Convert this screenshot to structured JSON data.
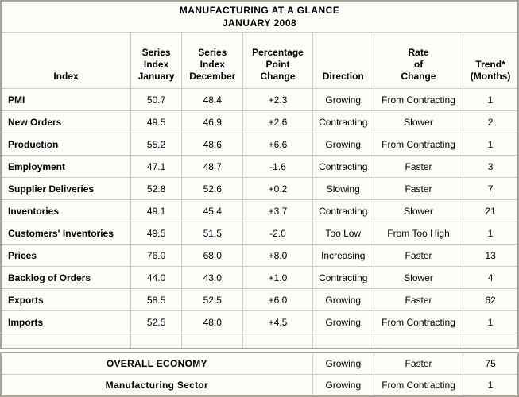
{
  "title": {
    "line1": "MANUFACTURING AT A GLANCE",
    "line2": "JANUARY 2008"
  },
  "columns": [
    {
      "key": "index",
      "label": "Index"
    },
    {
      "key": "jan",
      "label": "Series\nIndex\nJanuary"
    },
    {
      "key": "dec",
      "label": "Series\nIndex\nDecember"
    },
    {
      "key": "change",
      "label": "Percentage\nPoint\nChange"
    },
    {
      "key": "direction",
      "label": "Direction"
    },
    {
      "key": "rate",
      "label": "Rate\nof\nChange"
    },
    {
      "key": "trend",
      "label": "Trend*\n(Months)"
    }
  ],
  "rows": [
    {
      "index": "PMI",
      "jan": "50.7",
      "dec": "48.4",
      "change": "+2.3",
      "direction": "Growing",
      "rate": "From Contracting",
      "trend": "1"
    },
    {
      "index": "New Orders",
      "jan": "49.5",
      "dec": "46.9",
      "change": "+2.6",
      "direction": "Contracting",
      "rate": "Slower",
      "trend": "2"
    },
    {
      "index": "Production",
      "jan": "55.2",
      "dec": "48.6",
      "change": "+6.6",
      "direction": "Growing",
      "rate": "From Contracting",
      "trend": "1"
    },
    {
      "index": "Employment",
      "jan": "47.1",
      "dec": "48.7",
      "change": "-1.6",
      "direction": "Contracting",
      "rate": "Faster",
      "trend": "3"
    },
    {
      "index": "Supplier Deliveries",
      "jan": "52.8",
      "dec": "52.6",
      "change": "+0.2",
      "direction": "Slowing",
      "rate": "Faster",
      "trend": "7"
    },
    {
      "index": "Inventories",
      "jan": "49.1",
      "dec": "45.4",
      "change": "+3.7",
      "direction": "Contracting",
      "rate": "Slower",
      "trend": "21"
    },
    {
      "index": "Customers' Inventories",
      "jan": "49.5",
      "dec": "51.5",
      "change": "-2.0",
      "direction": "Too Low",
      "rate": "From Too High",
      "trend": "1"
    },
    {
      "index": "Prices",
      "jan": "76.0",
      "dec": "68.0",
      "change": "+8.0",
      "direction": "Increasing",
      "rate": "Faster",
      "trend": "13"
    },
    {
      "index": "Backlog of Orders",
      "jan": "44.0",
      "dec": "43.0",
      "change": "+1.0",
      "direction": "Contracting",
      "rate": "Slower",
      "trend": "4"
    },
    {
      "index": "Exports",
      "jan": "58.5",
      "dec": "52.5",
      "change": "+6.0",
      "direction": "Growing",
      "rate": "Faster",
      "trend": "62"
    },
    {
      "index": "Imports",
      "jan": "52.5",
      "dec": "48.0",
      "change": "+4.5",
      "direction": "Growing",
      "rate": "From Contracting",
      "trend": "1"
    }
  ],
  "summary_rows": [
    {
      "label": "OVERALL ECONOMY",
      "direction": "Growing",
      "rate": "Faster",
      "trend": "75"
    },
    {
      "label": "Manufacturing Sector",
      "direction": "Growing",
      "rate": "From Contracting",
      "trend": "1"
    }
  ],
  "colors": {
    "cell_bg": "#fcfef9",
    "border_inner": "#d2cebe",
    "border_outer": "#a8a496",
    "text": "#000000"
  },
  "chart_data": {
    "type": "table",
    "title": "MANUFACTURING AT A GLANCE JANUARY 2008",
    "columns": [
      "Index",
      "Series Index January",
      "Series Index December",
      "Percentage Point Change",
      "Direction",
      "Rate of Change",
      "Trend* (Months)"
    ],
    "rows": [
      [
        "PMI",
        50.7,
        48.4,
        "+2.3",
        "Growing",
        "From Contracting",
        1
      ],
      [
        "New Orders",
        49.5,
        46.9,
        "+2.6",
        "Contracting",
        "Slower",
        2
      ],
      [
        "Production",
        55.2,
        48.6,
        "+6.6",
        "Growing",
        "From Contracting",
        1
      ],
      [
        "Employment",
        47.1,
        48.7,
        "-1.6",
        "Contracting",
        "Faster",
        3
      ],
      [
        "Supplier Deliveries",
        52.8,
        52.6,
        "+0.2",
        "Slowing",
        "Faster",
        7
      ],
      [
        "Inventories",
        49.1,
        45.4,
        "+3.7",
        "Contracting",
        "Slower",
        21
      ],
      [
        "Customers' Inventories",
        49.5,
        51.5,
        "-2.0",
        "Too Low",
        "From Too High",
        1
      ],
      [
        "Prices",
        76.0,
        68.0,
        "+8.0",
        "Increasing",
        "Faster",
        13
      ],
      [
        "Backlog of Orders",
        44.0,
        43.0,
        "+1.0",
        "Contracting",
        "Slower",
        4
      ],
      [
        "Exports",
        58.5,
        52.5,
        "+6.0",
        "Growing",
        "Faster",
        62
      ],
      [
        "Imports",
        52.5,
        48.0,
        "+4.5",
        "Growing",
        "From Contracting",
        1
      ],
      [
        "OVERALL ECONOMY",
        null,
        null,
        null,
        "Growing",
        "Faster",
        75
      ],
      [
        "Manufacturing Sector",
        null,
        null,
        null,
        "Growing",
        "From Contracting",
        1
      ]
    ]
  }
}
